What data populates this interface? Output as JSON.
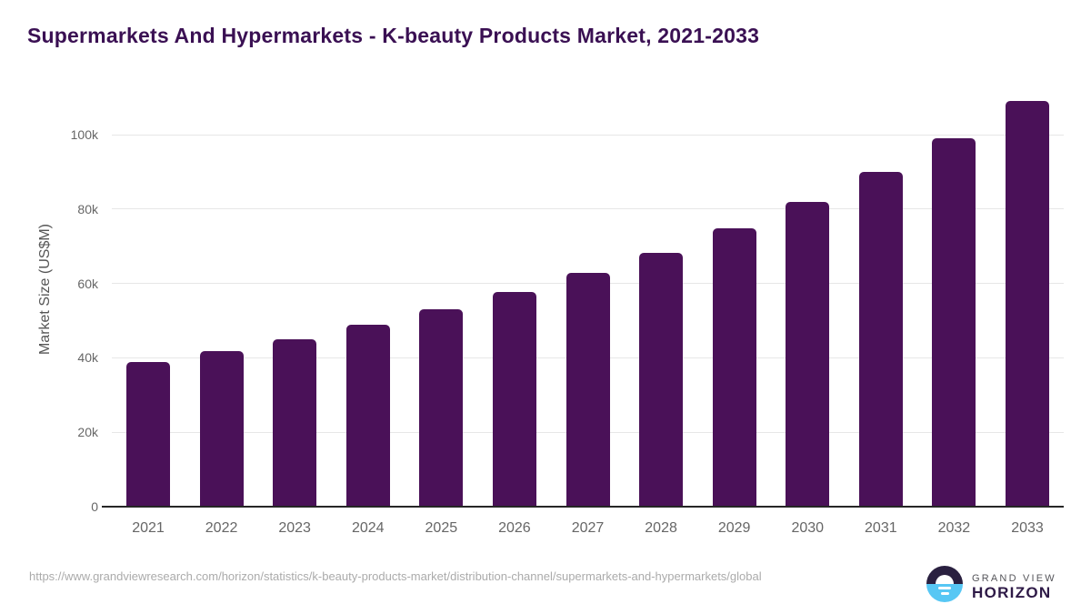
{
  "page": {
    "title": "Supermarkets And Hypermarkets - K-beauty Products Market, 2021-2033"
  },
  "chart_data": {
    "type": "bar",
    "title": "Supermarkets And Hypermarkets - K-beauty Products Market, 2021-2033",
    "categories": [
      "2021",
      "2022",
      "2023",
      "2024",
      "2025",
      "2026",
      "2027",
      "2028",
      "2029",
      "2030",
      "2031",
      "2032",
      "2033"
    ],
    "values": [
      38900,
      41800,
      45000,
      48900,
      53100,
      57800,
      62800,
      68300,
      74800,
      81900,
      90000,
      98900,
      109000
    ],
    "xlabel": "",
    "ylabel": "Market Size (US$M)",
    "ylim": [
      0,
      110000
    ],
    "yticks": [
      {
        "value": 0,
        "label": "0"
      },
      {
        "value": 20000,
        "label": "20k"
      },
      {
        "value": 40000,
        "label": "40k"
      },
      {
        "value": 60000,
        "label": "60k"
      },
      {
        "value": 80000,
        "label": "80k"
      },
      {
        "value": 100000,
        "label": "100k"
      }
    ],
    "legend": "none",
    "grid": "horizontal"
  },
  "footer": {
    "source_url": "https://www.grandviewresearch.com/horizon/statistics/k-beauty-products-market/distribution-channel/supermarkets-and-hypermarkets/global",
    "logo": {
      "brand_line1": "GRAND VIEW",
      "brand_line2": "HORIZON"
    }
  },
  "colors": {
    "bar": "#4a1158",
    "title_text": "#3a1053",
    "ylabel_text": "#555555",
    "tick_label": "#666666",
    "gridline": "#e7e7e7",
    "axis_line": "#262626",
    "url_text": "#ababab",
    "logo_dark": "#2a2040",
    "logo_blue": "#57c7f4",
    "grand_view_text": "#55555a",
    "horizon_text": "#2e1a47"
  }
}
